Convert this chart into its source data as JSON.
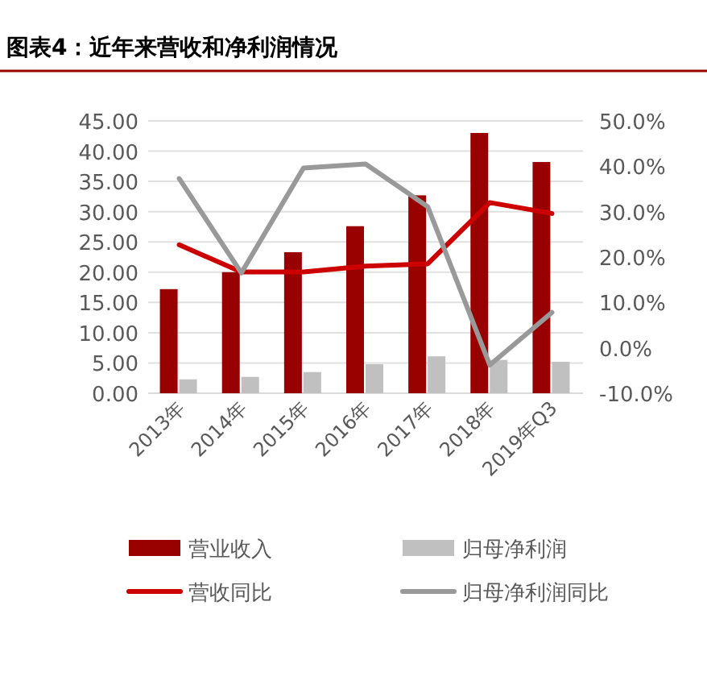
{
  "chart_data": {
    "type": "bar",
    "title": "图表4：近年来营收和净利润情况",
    "categories": [
      "2013年",
      "2014年",
      "2015年",
      "2016年",
      "2017年",
      "2018年",
      "2019年Q3"
    ],
    "series": [
      {
        "name": "营业收入",
        "color": "#990000",
        "values": [
          17.2,
          20.0,
          23.3,
          27.6,
          32.7,
          43.0,
          38.2
        ]
      },
      {
        "name": "归母净利润",
        "color": "#c0c0c0",
        "values": [
          2.3,
          2.7,
          3.5,
          4.8,
          6.1,
          5.5,
          5.2
        ]
      },
      {
        "name": "营收同比",
        "type": "line",
        "axis": "y2",
        "color": "#cc0000",
        "values": [
          22.7,
          16.7,
          16.7,
          18.0,
          18.5,
          32.0,
          29.6
        ]
      },
      {
        "name": "归母净利润同比",
        "type": "line",
        "axis": "y2",
        "color": "#999999",
        "values": [
          37.3,
          16.5,
          39.6,
          40.5,
          31.1,
          -3.8,
          7.8
        ]
      }
    ],
    "ylim": [
      0,
      45
    ],
    "yticks": [
      {
        "value": 0,
        "label": "0.00"
      },
      {
        "value": 5,
        "label": "5.00"
      },
      {
        "value": 10,
        "label": "10.00"
      },
      {
        "value": 15,
        "label": "15.00"
      },
      {
        "value": 20,
        "label": "20.00"
      },
      {
        "value": 25,
        "label": "25.00"
      },
      {
        "value": 30,
        "label": "30.00"
      },
      {
        "value": 35,
        "label": "35.00"
      },
      {
        "value": 40,
        "label": "40.00"
      },
      {
        "value": 45,
        "label": "45.00"
      }
    ],
    "y2lim": [
      -10,
      50
    ],
    "y2ticks": [
      {
        "value": -10,
        "label": "-10.0%"
      },
      {
        "value": 0,
        "label": "0.0%"
      },
      {
        "value": 10,
        "label": "10.0%"
      },
      {
        "value": 20,
        "label": "20.0%"
      },
      {
        "value": 30,
        "label": "30.0%"
      },
      {
        "value": 40,
        "label": "40.0%"
      },
      {
        "value": 50,
        "label": "50.0%"
      }
    ],
    "grid": "y",
    "legend": "bottom"
  }
}
